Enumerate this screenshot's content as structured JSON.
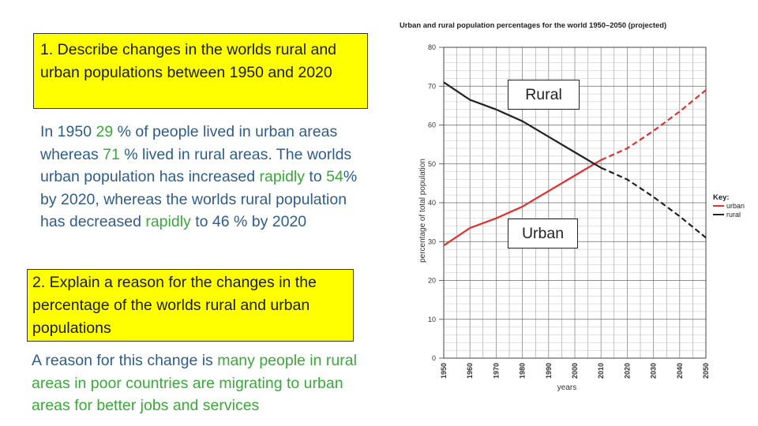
{
  "question1": {
    "text": "1.  Describe changes in the worlds rural and urban populations between 1950 and 2020"
  },
  "answer1": {
    "p1": "In 1950 ",
    "v1": "29",
    "p2": " % of people lived in urban areas whereas ",
    "v2": "71",
    "p3": " % lived in rural areas. The worlds urban population has increased ",
    "v3": "rapidly",
    "p4": " to ",
    "v4": "54",
    "p5": "% by 2020, whereas the worlds rural population has decreased ",
    "v5": "rapidly",
    "p6": " to 46 % by 2020"
  },
  "question2": {
    "text": "2.  Explain a reason for the changes in the percentage of the worlds rural and urban populations"
  },
  "answer2": {
    "p1": "A reason for this change is ",
    "v1": "many people in rural areas in poor countries are migrating to urban areas for better jobs and services"
  },
  "labels": {
    "rural": "Rural",
    "urban": "Urban"
  },
  "colors": {
    "highlight": "#ffff00",
    "answer_text": "#2e5d8a",
    "answer_green": "#3aa83a",
    "urban_line": "#e03030",
    "rural_line": "#222222"
  },
  "chart_data": {
    "type": "line",
    "title": "Urban and rural population percentages for the world 1950–2050 (projected)",
    "xlabel": "years",
    "ylabel": "percentage of total population",
    "x": [
      1950,
      1960,
      1970,
      1980,
      1990,
      2000,
      2010,
      2020,
      2030,
      2040,
      2050
    ],
    "xticks": [
      "1950",
      "1960",
      "1970",
      "1980",
      "1990",
      "2000",
      "2010",
      "2020",
      "2030",
      "2040",
      "2050"
    ],
    "yticks": [
      "0",
      "10",
      "20",
      "30",
      "40",
      "50",
      "60",
      "70",
      "80"
    ],
    "xlim": [
      1950,
      2050
    ],
    "ylim": [
      0,
      80
    ],
    "grid": true,
    "projected_from": 2010,
    "legend_title": "Key:",
    "legend_position": "right",
    "series": [
      {
        "name": "urban",
        "values": [
          29,
          33.5,
          36,
          39,
          43,
          47,
          51,
          54,
          58.5,
          63.5,
          69
        ],
        "color": "#e03030"
      },
      {
        "name": "rural",
        "values": [
          71,
          66.5,
          64,
          61,
          57,
          53,
          49,
          46,
          41.5,
          36.5,
          31
        ],
        "color": "#222222"
      }
    ]
  }
}
